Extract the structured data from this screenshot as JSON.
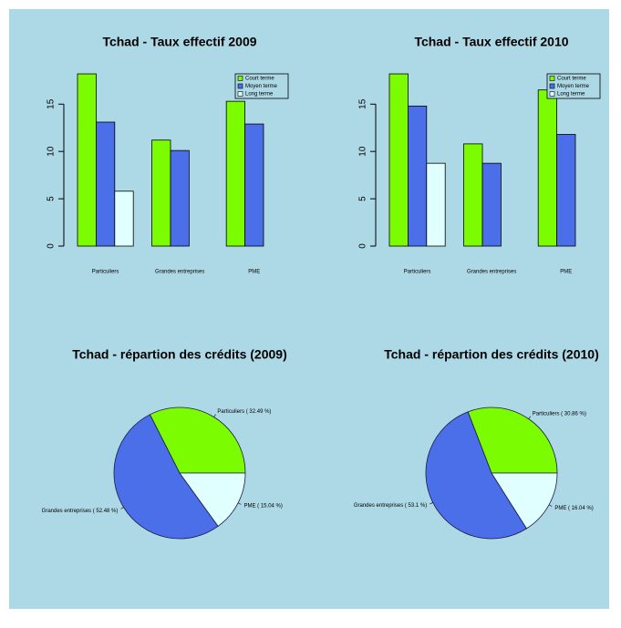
{
  "chart_data": [
    {
      "type": "bar",
      "title": "Tchad - Taux effectif 2009",
      "categories": [
        "Particuliers",
        "Grandes entreprises",
        "PME"
      ],
      "series": [
        {
          "name": "Court terme",
          "color": "#7cfc00",
          "values": [
            18.2,
            11.2,
            15.3
          ]
        },
        {
          "name": "Moyen terme",
          "color": "#4a6fe8",
          "values": [
            13.1,
            10.1,
            12.9
          ]
        },
        {
          "name": "Long terme",
          "color": "#e0ffff",
          "values": [
            5.8,
            null,
            null
          ]
        }
      ],
      "ylim": [
        0,
        18.3
      ],
      "yticks": [
        0,
        5,
        10,
        15
      ],
      "legend": "topright"
    },
    {
      "type": "bar",
      "title": "Tchad - Taux effectif 2010",
      "categories": [
        "Particuliers",
        "Grandes entreprises",
        "PME"
      ],
      "series": [
        {
          "name": "Court terme",
          "color": "#7cfc00",
          "values": [
            18.2,
            10.8,
            16.5
          ]
        },
        {
          "name": "Moyen terme",
          "color": "#4a6fe8",
          "values": [
            14.8,
            8.75,
            11.8
          ]
        },
        {
          "name": "Long terme",
          "color": "#e0ffff",
          "values": [
            8.75,
            null,
            null
          ]
        }
      ],
      "ylim": [
        0,
        18.3
      ],
      "yticks": [
        0,
        5,
        10,
        15
      ],
      "legend": "topright"
    },
    {
      "type": "pie",
      "title": "Tchad - répartion des crédits (2009)",
      "labels": [
        "Particuliers ( 32.49 %)",
        "Grandes entreprises ( 52.48 %)",
        "PME ( 15.04 %)"
      ],
      "values": [
        32.49,
        52.48,
        15.04
      ],
      "colors": [
        "#7cfc00",
        "#4a6fe8",
        "#e0ffff"
      ]
    },
    {
      "type": "pie",
      "title": "Tchad - répartion des crédits (2010)",
      "labels": [
        "Particuliers ( 30.86 %)",
        "Grandes entreprises ( 53.1 %)",
        "PME ( 16.04 %)"
      ],
      "values": [
        30.86,
        53.1,
        16.04
      ],
      "colors": [
        "#7cfc00",
        "#4a6fe8",
        "#e0ffff"
      ]
    }
  ]
}
